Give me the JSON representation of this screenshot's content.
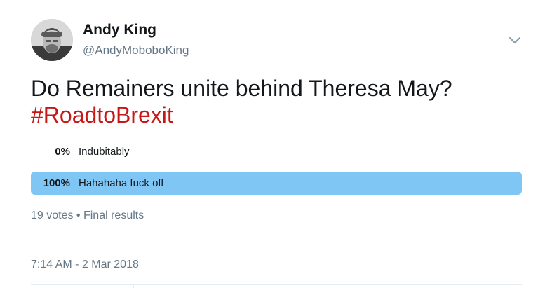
{
  "author": {
    "name": "Andy King",
    "handle": "@AndyMoboboKing"
  },
  "tweet": {
    "text": "Do Remainers unite behind Theresa May?",
    "hashtag": "#RoadtoBrexit"
  },
  "poll": {
    "choices": [
      {
        "percent_label": "0%",
        "label": "Indubitably",
        "fraction": 0.0
      },
      {
        "percent_label": "100%",
        "label": "Hahahaha fuck off",
        "fraction": 1.0
      }
    ],
    "meta": "19 votes • Final results"
  },
  "timestamp": "7:14 AM - 2 Mar 2018",
  "colors": {
    "hashtag": "#c71818",
    "poll_bar_winner": "#7fc6f5",
    "secondary_text": "#657786"
  },
  "icons": {
    "menu": "chevron-down-icon"
  }
}
